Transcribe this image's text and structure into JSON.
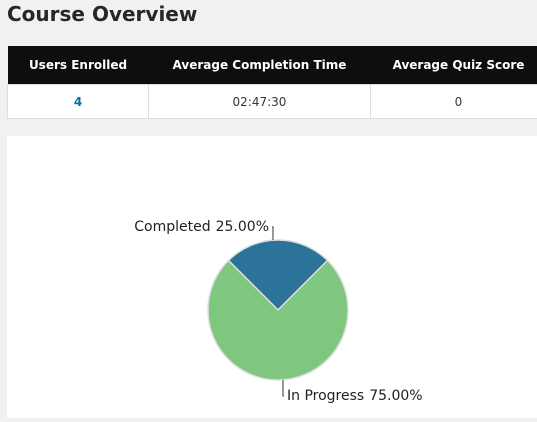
{
  "header": {
    "title": "Course Overview"
  },
  "table": {
    "headers": [
      "Users Enrolled",
      "Average Completion Time",
      "Average Quiz Score"
    ],
    "rows": [
      [
        "4",
        "02:47:30",
        "0"
      ]
    ]
  },
  "chart_data": {
    "type": "pie",
    "categories": [
      "Completed",
      "In Progress"
    ],
    "values": [
      25,
      75
    ],
    "value_labels": [
      "25.00%",
      "75.00%"
    ],
    "colors": [
      "#2b7399",
      "#7fc77e"
    ]
  }
}
